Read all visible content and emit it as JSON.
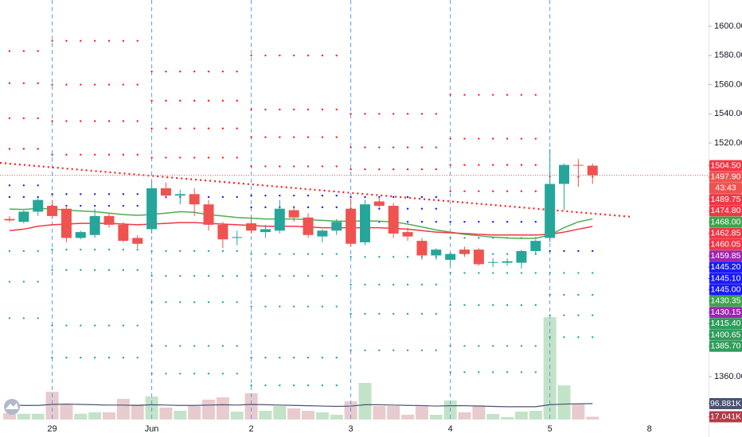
{
  "chart_data": {
    "type": "candlestick",
    "xlim": [
      -0.67,
      49.16
    ],
    "xticks": [
      {
        "value": 3,
        "label": "29"
      },
      {
        "value": 10,
        "label": "Jun"
      },
      {
        "value": 17,
        "label": "2"
      },
      {
        "value": 24,
        "label": "3"
      },
      {
        "value": 31,
        "label": "4"
      },
      {
        "value": 38,
        "label": "5"
      },
      {
        "value": 45,
        "label": "8"
      }
    ],
    "ylim": [
      1329.5,
      1618
    ],
    "yticks": [
      {
        "value": 1600,
        "label": "1600.00"
      },
      {
        "value": 1580,
        "label": "1580.00"
      },
      {
        "value": 1560,
        "label": "1560.00"
      },
      {
        "value": 1540,
        "label": "1540.00"
      },
      {
        "value": 1520,
        "label": "1520.00"
      },
      {
        "value": 1360,
        "label": "1360.00"
      }
    ],
    "up_color": "#26a69a",
    "down_color": "#ef5350",
    "open": [
      1468,
      1466,
      1473,
      1477,
      1475,
      1455,
      1457,
      1470,
      1464,
      1455,
      1461,
      1489,
      1484,
      1485,
      1478,
      1464,
      1455,
      1465,
      1459,
      1460,
      1474,
      1469,
      1456,
      1460,
      1475,
      1452,
      1480,
      1477,
      1459,
      1453,
      1443,
      1440,
      1447,
      1447,
      1438,
      1438,
      1438,
      1446,
      1455,
      1492,
      1505,
      1504.5
    ],
    "high": [
      1470,
      1474,
      1482,
      1481,
      1477,
      1460,
      1475,
      1472,
      1466,
      1457,
      1494,
      1493,
      1488,
      1489,
      1481,
      1466,
      1460,
      1470,
      1464,
      1481,
      1477,
      1472,
      1461,
      1468,
      1482,
      1481,
      1483,
      1479,
      1462,
      1455,
      1448,
      1445,
      1449,
      1448,
      1441,
      1441,
      1447,
      1454,
      1516,
      1506,
      1509,
      1506
    ],
    "low": [
      1466,
      1465,
      1470,
      1468,
      1452,
      1454,
      1455,
      1462,
      1452,
      1448,
      1458,
      1482,
      1478,
      1470,
      1460,
      1448,
      1450,
      1458,
      1455,
      1458,
      1466,
      1455,
      1452,
      1457,
      1449,
      1450,
      1476,
      1455,
      1453,
      1440,
      1440,
      1436,
      1442,
      1436,
      1435,
      1436,
      1434,
      1444,
      1452,
      1474,
      1490,
      1492
    ],
    "close": [
      1467,
      1473,
      1481,
      1470,
      1455,
      1459,
      1470,
      1464,
      1453,
      1451,
      1489,
      1484,
      1485,
      1478,
      1464,
      1454,
      1455.6,
      1460,
      1461,
      1475,
      1469,
      1457,
      1460,
      1466,
      1451,
      1478,
      1477,
      1458,
      1456,
      1443,
      1447,
      1444,
      1444,
      1437,
      1438.5,
      1439,
      1446,
      1453,
      1492,
      1505,
      1504.6,
      1497.9
    ],
    "moving_averages": [
      {
        "color": "#4caf50",
        "values": [
          1474.8,
          1474.5,
          1475.2,
          1475,
          1474,
          1473.5,
          1473,
          1472,
          1471,
          1470.5,
          1471,
          1472,
          1473,
          1472.5,
          1471,
          1470,
          1469,
          1468.5,
          1468,
          1468,
          1468,
          1467.5,
          1467,
          1466.5,
          1466.5,
          1466.7,
          1466.5,
          1466,
          1464.5,
          1462.5,
          1460.5,
          1459,
          1457.5,
          1456.5,
          1455.5,
          1455,
          1454.7,
          1454.7,
          1457,
          1462,
          1466,
          1468
        ]
      },
      {
        "color": "#f23645",
        "values": [
          1460,
          1461,
          1463,
          1464,
          1464.5,
          1465,
          1465,
          1465,
          1464.5,
          1464,
          1464.5,
          1465,
          1465.5,
          1465.5,
          1465,
          1464.5,
          1464,
          1463.5,
          1463,
          1463,
          1463,
          1462.5,
          1462,
          1462,
          1462,
          1462,
          1462,
          1461.5,
          1461,
          1460,
          1459,
          1458.5,
          1458,
          1457.5,
          1457,
          1457,
          1457,
          1457,
          1457.5,
          1459,
          1461,
          1462.85
        ]
      }
    ],
    "trendline": {
      "color": "#ff1a1a",
      "x": [
        -0.67,
        43.8
      ],
      "values": [
        1506.4,
        1469.4
      ]
    },
    "pivot_colors": {
      "resistance": "#ff1a1a",
      "pivot": "#1a1aff",
      "support": "#26a69a"
    },
    "pivot_levels": [
      {
        "resistance": [
          1583,
          1561,
          1537,
          1516
        ],
        "pivot": [
          1491,
          1483
        ],
        "support": [
          1446,
          1425,
          1400
        ]
      },
      {
        "resistance": [
          1590,
          1560,
          1535,
          1512
        ],
        "pivot": [
          1485,
          1477
        ],
        "support": [
          1447,
          1433,
          1395,
          1373
        ]
      },
      {
        "resistance": [
          1569,
          1549,
          1530,
          1510
        ],
        "pivot": [
          1483
        ],
        "support": [
          1446,
          1429,
          1411,
          1381,
          1362
        ]
      },
      {
        "resistance": [
          1580,
          1543,
          1524,
          1504
        ],
        "pivot": [
          1484,
          1476
        ],
        "support": [
          1444,
          1429,
          1408,
          1373,
          1354
        ]
      },
      {
        "resistance": [
          1540,
          1517,
          1502
        ],
        "pivot": [
          1483,
          1475,
          1466
        ],
        "support": [
          1442,
          1423,
          1403,
          1378
        ]
      },
      {
        "resistance": [
          1553,
          1523,
          1505,
          1487
        ],
        "pivot": [
          1466
        ],
        "support": [
          1455,
          1444,
          1431,
          1409,
          1381,
          1363
        ]
      },
      {
        "resistance": [
          1497
        ],
        "pivot": [
          1446
        ],
        "support": [
          1431,
          1416,
          1402,
          1387
        ]
      }
    ],
    "volume": [
      39,
      35,
      35,
      169,
      97,
      35,
      44,
      44,
      126,
      92,
      140,
      73,
      53,
      82,
      121,
      135,
      48,
      160,
      53,
      82,
      68,
      53,
      44,
      29,
      111,
      223,
      82,
      82,
      29,
      82,
      29,
      116,
      44,
      87,
      34,
      15,
      48,
      53,
      624,
      208,
      97,
      17.041
    ],
    "volume_ma": [
      88,
      86,
      86,
      92,
      94,
      92,
      90,
      88,
      88,
      86,
      90,
      88,
      86,
      86,
      88,
      90,
      88,
      92,
      90,
      88,
      86,
      84,
      82,
      80,
      82,
      90,
      90,
      88,
      86,
      85,
      82,
      84,
      84,
      82,
      80,
      78,
      78,
      78,
      90,
      94,
      96,
      96.881
    ],
    "volume_up_color": "#c3e3c8",
    "volume_down_color": "#e8cbce",
    "volume_ma_color": "#4a5373",
    "price_labels": [
      {
        "value": 1504.5,
        "label": "1504.50",
        "color": "#f23645"
      },
      {
        "value": 1497.9,
        "label": "1497.90",
        "color": "#ef5350"
      },
      {
        "value": 1489.75,
        "label": "1489.75",
        "color": "#f23645"
      },
      {
        "value": 1474.8,
        "label": "1474.80",
        "color": "#f23645"
      },
      {
        "value": 1468,
        "label": "1468.00",
        "color": "#3da44c"
      },
      {
        "value": 1462.85,
        "label": "1462.85",
        "color": "#f23645"
      },
      {
        "value": 1460.05,
        "label": "1460.05",
        "color": "#f23645"
      },
      {
        "value": 1459.85,
        "label": "1459.85",
        "color": "#9c27b0"
      },
      {
        "value": 1445.2,
        "label": "1445.20",
        "color": "#1a1aff"
      },
      {
        "value": 1445.1,
        "label": "1445.10",
        "color": "#1a1aff"
      },
      {
        "value": 1445,
        "label": "1445.00",
        "color": "#1a1aff"
      },
      {
        "value": 1430.35,
        "label": "1430.35",
        "color": "#3da44c"
      },
      {
        "value": 1430.15,
        "label": "1430.15",
        "color": "#9c27b0"
      },
      {
        "value": 1415.4,
        "label": "1415.40",
        "color": "#2e9e5b"
      },
      {
        "value": 1400.65,
        "label": "1400.65",
        "color": "#2e9e5b"
      },
      {
        "value": 1385.7,
        "label": "1385.70",
        "color": "#2e9e5b"
      }
    ],
    "countdown": "43:43",
    "volume_labels": [
      {
        "value": 96.881,
        "label": "96.881K",
        "color": "#4a5373"
      },
      {
        "value": 17.041,
        "label": "17.041K",
        "color": "#b23a48"
      }
    ]
  }
}
